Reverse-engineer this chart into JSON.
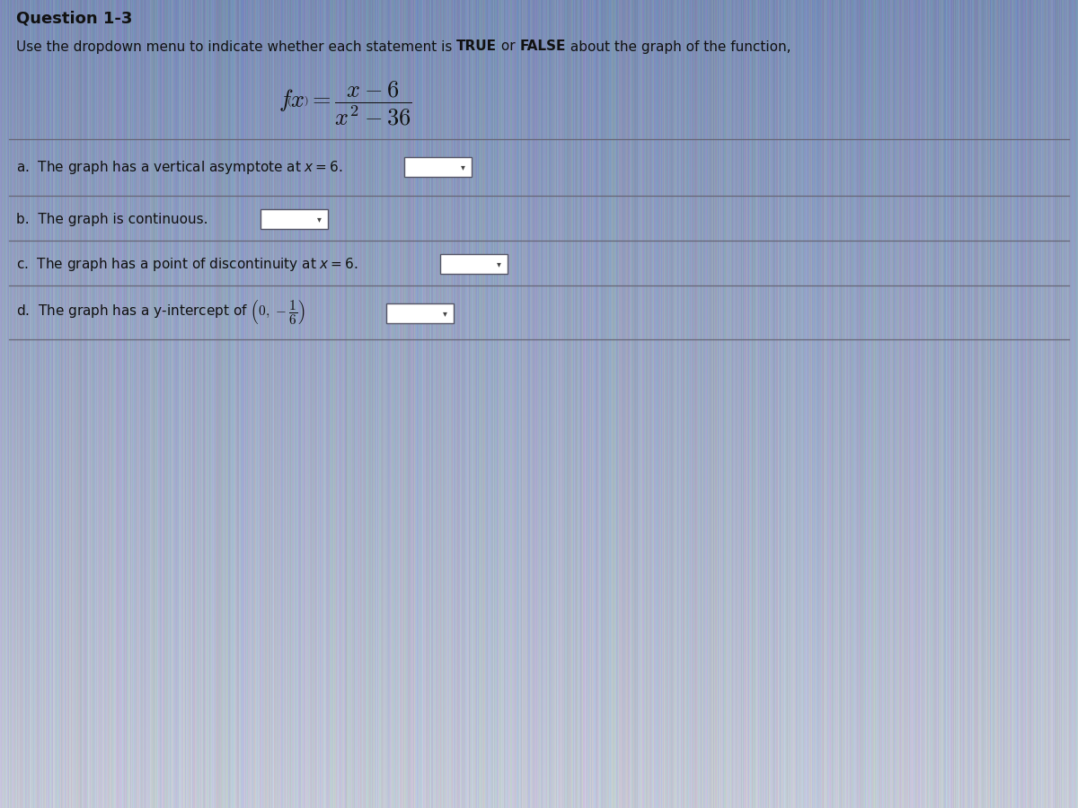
{
  "title": "Question 1-3",
  "bg_color_top": "#8a9bbf",
  "bg_color_mid": "#b0bdd4",
  "bg_color_bot": "#c8cfe0",
  "text_color": "#111111",
  "line_color": "#666677",
  "dropdown_edge": "#555566",
  "font_size_title": 13,
  "font_size_body": 11,
  "font_size_formula": 15,
  "intro_normal": "Use the dropdown menu to indicate whether each statement is ",
  "intro_bold1": "TRUE",
  "intro_or": " or ",
  "intro_bold2": "FALSE",
  "intro_end": " about the graph of the function,",
  "stmt_a": "a.  The graph has a vertical asymptote at ",
  "stmt_a_math": "$x = 6$",
  "stmt_a_end": ".",
  "stmt_b": "b.  The graph is continuous.",
  "stmt_c": "c.  The graph has a point of discontinuity at ",
  "stmt_c_math": "$x = 6$",
  "stmt_c_end": ".",
  "stmt_d": "d.  The graph has a y-intercept of"
}
